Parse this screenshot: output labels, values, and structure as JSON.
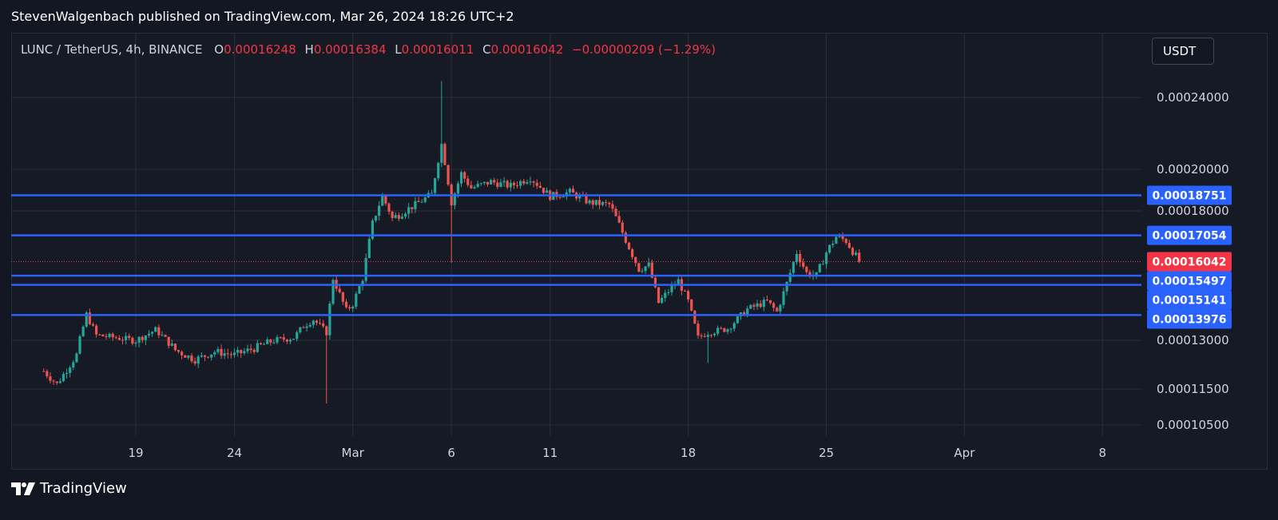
{
  "header": {
    "publisher": "StevenWalgenbach published on TradingView.com, Mar 26, 2024 18:26 UTC+2"
  },
  "legend": {
    "symbol": "LUNC / TetherUS, 4h, BINANCE",
    "open_label": "O",
    "open": "0.00016248",
    "high_label": "H",
    "high": "0.00016384",
    "low_label": "L",
    "low": "0.00016011",
    "close_label": "C",
    "close": "0.00016042",
    "change": "−0.00000209 (−1.29%)"
  },
  "currency_button": {
    "label": "USDT"
  },
  "brand": {
    "name": "TradingView",
    "logo_icon": "tradingview-logo-icon"
  },
  "colors": {
    "background": "#131722",
    "up": "#26a69a",
    "down": "#ef5350",
    "level": "#2962ff",
    "last_price": "#f23645",
    "grid": "#2a2e39"
  },
  "chart_data": {
    "type": "candlestick",
    "axis": {
      "y_ticks": [
        "0.00024000",
        "0.00020000",
        "0.00018000",
        "0.00013000",
        "0.00011500",
        "0.00010500"
      ],
      "x_ticks": [
        "19",
        "24",
        "Mar",
        "6",
        "11",
        "18",
        "25",
        "Apr",
        "8"
      ]
    },
    "horizontal_levels": [
      {
        "label": "0.00018751",
        "value": 0.00018751
      },
      {
        "label": "0.00017054",
        "value": 0.00017054
      },
      {
        "label": "0.00015497",
        "value": 0.00015497
      },
      {
        "label": "0.00015141",
        "value": 0.00015141
      },
      {
        "label": "0.00013976",
        "value": 0.00013976
      }
    ],
    "last_price": {
      "label": "0.00016042",
      "value": 0.00016042
    },
    "price_path": [
      [
        "Feb 14 08:00",
        0.0001205
      ],
      [
        "Feb 15",
        0.0001165
      ],
      [
        "Feb 16",
        0.0001255
      ],
      [
        "Feb 16 12:00",
        0.00014
      ],
      [
        "Feb 17",
        0.000132
      ],
      [
        "Feb 19",
        0.00013
      ],
      [
        "Feb 20",
        0.000134
      ],
      [
        "Feb 21",
        0.000127
      ],
      [
        "Feb 22",
        0.000124
      ],
      [
        "Feb 23",
        0.0001265
      ],
      [
        "Feb 24",
        0.0001255
      ],
      [
        "Feb 25",
        0.0001275
      ],
      [
        "Feb 26",
        0.00013
      ],
      [
        "Feb 27",
        0.000131
      ],
      [
        "Feb 27 12:00",
        0.0001355
      ],
      [
        "Feb 28",
        0.000138
      ],
      [
        "Feb 28 16:00",
        0.000133
      ],
      [
        "Feb 29",
        0.000154
      ],
      [
        "Feb 29 16:00",
        0.0001415
      ],
      [
        "Mar 1",
        0.000144
      ],
      [
        "Mar 1 12:00",
        0.000154
      ],
      [
        "Mar 2",
        0.000175
      ],
      [
        "Mar 2 12:00",
        0.000187
      ],
      [
        "Mar 3",
        0.000177
      ],
      [
        "Mar 4",
        0.000182
      ],
      [
        "Mar 5",
        0.000188
      ],
      [
        "Mar 5 12:00",
        0.000214
      ],
      [
        "Mar 6",
        0.000184
      ],
      [
        "Mar 6 12:00",
        0.000198
      ],
      [
        "Mar 7",
        0.000191
      ],
      [
        "Mar 8",
        0.000194
      ],
      [
        "Mar 9",
        0.000192
      ],
      [
        "Mar 10",
        0.000196
      ],
      [
        "Mar 11",
        0.000187
      ],
      [
        "Mar 12",
        0.000189
      ],
      [
        "Mar 13",
        0.000184
      ],
      [
        "Mar 14",
        0.000183
      ],
      [
        "Mar 15",
        0.000166
      ],
      [
        "Mar 15 12:00",
        0.0001575
      ],
      [
        "Mar 16",
        0.000159
      ],
      [
        "Mar 16 12:00",
        0.0001445
      ],
      [
        "Mar 17",
        0.000149
      ],
      [
        "Mar 17 12:00",
        0.000153
      ],
      [
        "Mar 18",
        0.000145
      ],
      [
        "Mar 18 12:00",
        0.000131
      ],
      [
        "Mar 19",
        0.000133
      ],
      [
        "Mar 20",
        0.0001345
      ],
      [
        "Mar 21",
        0.000142
      ],
      [
        "Mar 22",
        0.000145
      ],
      [
        "Mar 22 12:00",
        0.000141
      ],
      [
        "Mar 23",
        0.000152
      ],
      [
        "Mar 23 12:00",
        0.000164
      ],
      [
        "Mar 24",
        0.000156
      ],
      [
        "Mar 24 12:00",
        0.000155
      ],
      [
        "Mar 25",
        0.000164
      ],
      [
        "Mar 25 12:00",
        0.00017
      ],
      [
        "Mar 26",
        0.0001685
      ],
      [
        "Mar 26 16:00",
        0.0001604
      ]
    ],
    "notable_wicks": [
      [
        "Feb 28 16:00",
        "low",
        0.000111
      ],
      [
        "Mar 5 12:00",
        "high",
        0.00025
      ],
      [
        "Mar 6",
        "low",
        0.00016
      ],
      [
        "Mar 19",
        "low",
        0.000123
      ]
    ]
  }
}
